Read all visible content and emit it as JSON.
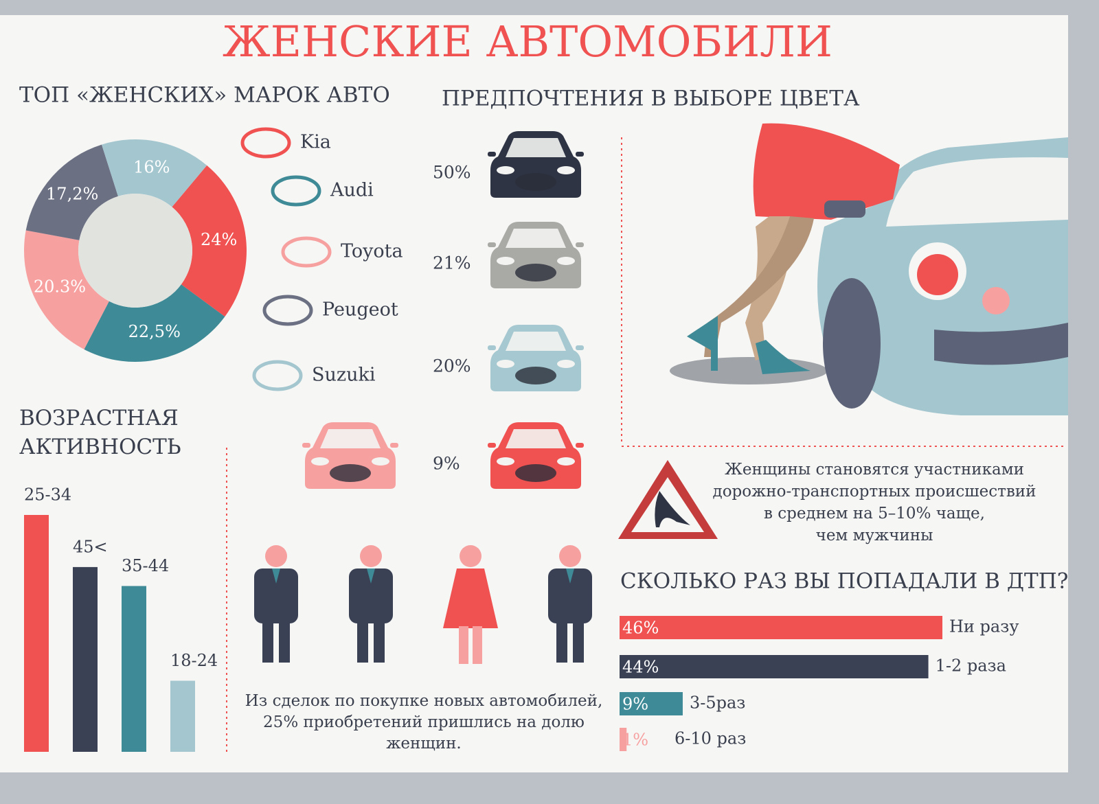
{
  "title": "ЖЕНСКИЕ АВТОМОБИЛИ",
  "chart_data": [
    {
      "type": "donut",
      "title": "ТОП «ЖЕНСКИХ» МАРОК АВТО",
      "categories": [
        "Kia",
        "Audi",
        "Toyota",
        "Peugeot",
        "Suzuki"
      ],
      "values": [
        24,
        22.5,
        20.3,
        17.2,
        16
      ],
      "value_labels": [
        "24%",
        "22,5%",
        "20.3%",
        "17,2%",
        "16%"
      ],
      "colors": [
        "#f05252",
        "#3e8a96",
        "#f7a0a0",
        "#6c7083",
        "#a4c6cf"
      ]
    },
    {
      "type": "pictogram",
      "title": "ПРЕДПОЧТЕНИЯ В ВЫБОРЕ ЦВЕТА",
      "values": [
        50,
        21,
        20,
        9
      ],
      "value_labels": [
        "50%",
        "21%",
        "20%",
        "9%"
      ],
      "colors": [
        "#2f3444",
        "#a9aaa6",
        "#a6c8d0",
        "#f05252"
      ]
    },
    {
      "type": "bar",
      "title": "ВОЗРАСТНАЯ АКТИВНОСТЬ",
      "categories": [
        "25-34",
        "45<",
        "35-44",
        "18-24"
      ],
      "values": [
        100,
        78,
        70,
        30
      ],
      "colors": [
        "#f05252",
        "#3a4155",
        "#3e8a96",
        "#a4c6cf"
      ]
    },
    {
      "type": "hbar",
      "title": "СКОЛЬКО РАЗ ВЫ ПОПАДАЛИ В ДТП?",
      "categories": [
        "Ни разу",
        "1-2 раза",
        "3-5раз",
        "6-10 раз"
      ],
      "values": [
        46,
        44,
        9,
        1
      ],
      "value_labels": [
        "46%",
        "44%",
        "9%",
        "1%"
      ],
      "colors": [
        "#f05252",
        "#3a4155",
        "#3e8a96",
        "#f7a0a0"
      ]
    }
  ],
  "purchase_note": [
    "Из сделок по покупке новых автомобилей,",
    "25% приобретений пришлись на долю",
    "женщин."
  ],
  "accident_note": [
    "Женщины становятся участниками",
    "дорожно-транспортных происшествий",
    "в среднем на 5–10% чаще,",
    "чем мужчины"
  ]
}
